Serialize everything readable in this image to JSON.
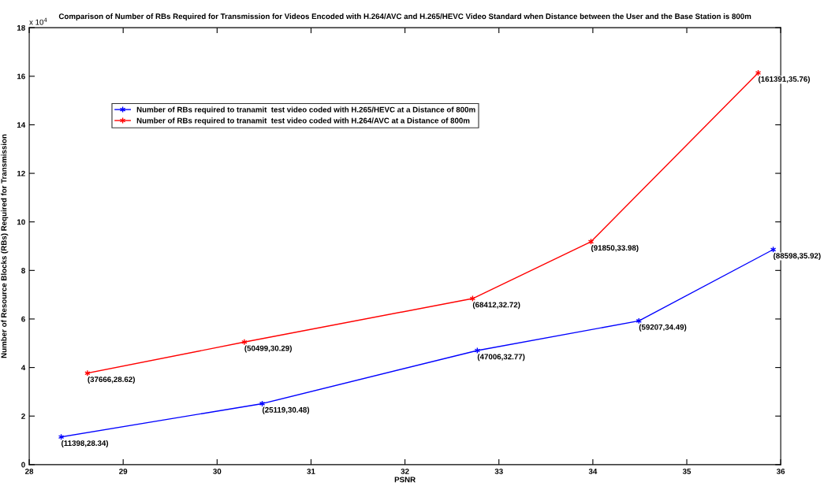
{
  "chart_data": {
    "type": "line",
    "title": "Comparison of Number of RBs Required for Transmission for Videos Encoded with H.264/AVC and H.265/HEVC Video Standard when Distance between the User and the Base Station is 800m",
    "xlabel": "PSNR",
    "ylabel": "Number of Resource Blocks (RBs) Required for Transmission",
    "series": [
      {
        "name": "Number of RBs required to tranamit  test video coded with H.265/HEVC at a Distance of 800m",
        "color": "#0000ff",
        "x": [
          28.34,
          30.48,
          32.77,
          34.49,
          35.92
        ],
        "values": [
          1.1398,
          2.5119,
          4.7006,
          5.9207,
          8.8598
        ]
      },
      {
        "name": "Number of RBs required to tranamit  test video coded with H.264/AVC at a Distance of 800m",
        "color": "#ff0000",
        "x": [
          28.62,
          30.29,
          32.72,
          33.98,
          35.76
        ],
        "values": [
          3.7666,
          5.0499,
          6.8412,
          9.185,
          16.1391
        ]
      }
    ],
    "xlim": [
      28,
      36
    ],
    "xticks": [
      28,
      29,
      30,
      31,
      32,
      33,
      34,
      35,
      36
    ],
    "ylim": [
      0,
      18
    ],
    "yticks": [
      0,
      2,
      4,
      6,
      8,
      10,
      12,
      14,
      16,
      18
    ],
    "annotations": [
      "x 10$^{4}$",
      {
        "text": "(11398,28.34)",
        "x": 28.34,
        "y": 1.1398
      },
      {
        "text": "(25119,30.48)",
        "x": 30.48,
        "y": 2.5119
      },
      {
        "text": "(47006,32.77)",
        "x": 32.77,
        "y": 4.7006
      },
      {
        "text": "(59207,34.49)",
        "x": 34.49,
        "y": 5.9207
      },
      {
        "text": "(88598,35.92)",
        "x": 35.92,
        "y": 8.8598
      },
      {
        "text": "(37666,28.62)",
        "x": 28.62,
        "y": 3.7666
      },
      {
        "text": "(50499,30.29)",
        "x": 30.29,
        "y": 5.0499
      },
      {
        "text": "(68412,32.72)",
        "x": 32.72,
        "y": 6.8412
      },
      {
        "text": "(91850,33.98)",
        "x": 33.98,
        "y": 9.185
      },
      {
        "text": "(161391,35.76)",
        "x": 35.76,
        "y": 16.1391
      }
    ],
    "legend": "top left",
    "grid": false,
    "marker": "cross",
    "line_style": "solid"
  }
}
